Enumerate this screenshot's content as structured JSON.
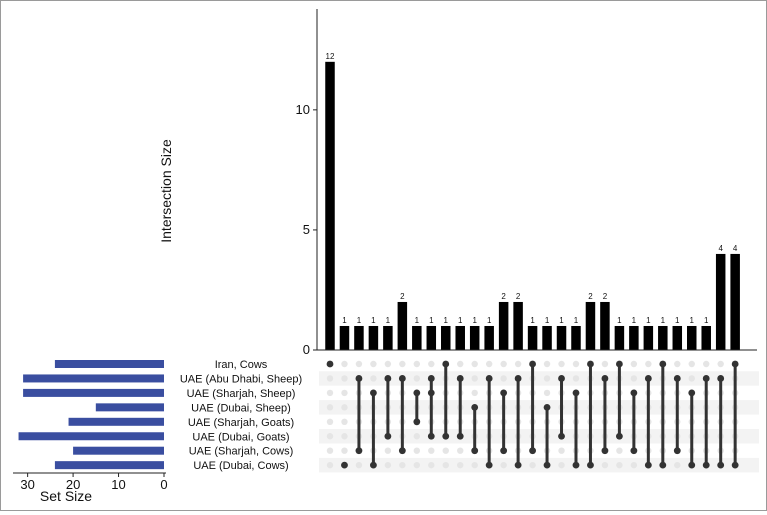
{
  "chart_data": {
    "type": "upset",
    "ylabel": "Intersection Size",
    "set_size_label": "Set Size",
    "y_ticks": [
      0,
      5,
      10
    ],
    "ylim": [
      0,
      13.7
    ],
    "set_size_ticks": [
      30,
      20,
      10,
      0
    ],
    "set_size_lim": [
      0,
      33
    ],
    "bar_color": "#000000",
    "set_bar_color": "#3a4ea0",
    "dot_active_color": "#333333",
    "dot_inactive_color": "#e5e5e5",
    "sets": [
      {
        "name": "Iran, Cows",
        "size": 24
      },
      {
        "name": "UAE (Abu Dhabi, Sheep)",
        "size": 31
      },
      {
        "name": "UAE (Sharjah, Sheep)",
        "size": 31
      },
      {
        "name": "UAE (Dubai, Sheep)",
        "size": 15
      },
      {
        "name": "UAE (Sharjah, Goats)",
        "size": 21
      },
      {
        "name": "UAE (Dubai, Goats)",
        "size": 32
      },
      {
        "name": "UAE (Sharjah, Cows)",
        "size": 20
      },
      {
        "name": "UAE (Dubai, Cows)",
        "size": 24
      }
    ],
    "intersections": [
      {
        "value": 12,
        "label": "12",
        "sets": [
          0
        ]
      },
      {
        "value": 1,
        "label": "1",
        "sets": [
          7
        ]
      },
      {
        "value": 1,
        "label": "1",
        "sets": [
          1,
          6
        ]
      },
      {
        "value": 1,
        "label": "1",
        "sets": [
          2,
          7
        ]
      },
      {
        "value": 1,
        "label": "1",
        "sets": [
          1,
          5
        ]
      },
      {
        "value": 2,
        "label": "2",
        "sets": [
          1,
          6
        ]
      },
      {
        "value": 1,
        "label": "1",
        "sets": [
          2,
          4
        ]
      },
      {
        "value": 1,
        "label": "1",
        "sets": [
          1,
          2,
          5
        ]
      },
      {
        "value": 1,
        "label": "1",
        "sets": [
          0,
          5
        ]
      },
      {
        "value": 1,
        "label": "1",
        "sets": [
          1,
          5
        ]
      },
      {
        "value": 1,
        "label": "1",
        "sets": [
          3,
          6
        ]
      },
      {
        "value": 1,
        "label": "1",
        "sets": [
          1,
          7
        ]
      },
      {
        "value": 2,
        "label": "2",
        "sets": [
          2,
          6
        ]
      },
      {
        "value": 2,
        "label": "2",
        "sets": [
          1,
          7
        ]
      },
      {
        "value": 1,
        "label": "1",
        "sets": [
          0,
          6
        ]
      },
      {
        "value": 1,
        "label": "1",
        "sets": [
          3,
          7
        ]
      },
      {
        "value": 1,
        "label": "1",
        "sets": [
          1,
          5
        ]
      },
      {
        "value": 1,
        "label": "1",
        "sets": [
          2,
          7
        ]
      },
      {
        "value": 2,
        "label": "2",
        "sets": [
          0,
          7
        ]
      },
      {
        "value": 2,
        "label": "2",
        "sets": [
          1,
          6
        ]
      },
      {
        "value": 1,
        "label": "1",
        "sets": [
          0,
          5
        ]
      },
      {
        "value": 1,
        "label": "1",
        "sets": [
          2,
          6
        ]
      },
      {
        "value": 1,
        "label": "1",
        "sets": [
          1,
          7
        ]
      },
      {
        "value": 1,
        "label": "1",
        "sets": [
          0,
          7
        ]
      },
      {
        "value": 1,
        "label": "1",
        "sets": [
          1,
          6
        ]
      },
      {
        "value": 1,
        "label": "1",
        "sets": [
          2,
          7
        ]
      },
      {
        "value": 1,
        "label": "1",
        "sets": [
          1,
          7
        ]
      },
      {
        "value": 4,
        "label": "4",
        "sets": [
          1,
          7
        ]
      },
      {
        "value": 4,
        "label": "4",
        "sets": [
          0,
          7
        ]
      }
    ]
  }
}
